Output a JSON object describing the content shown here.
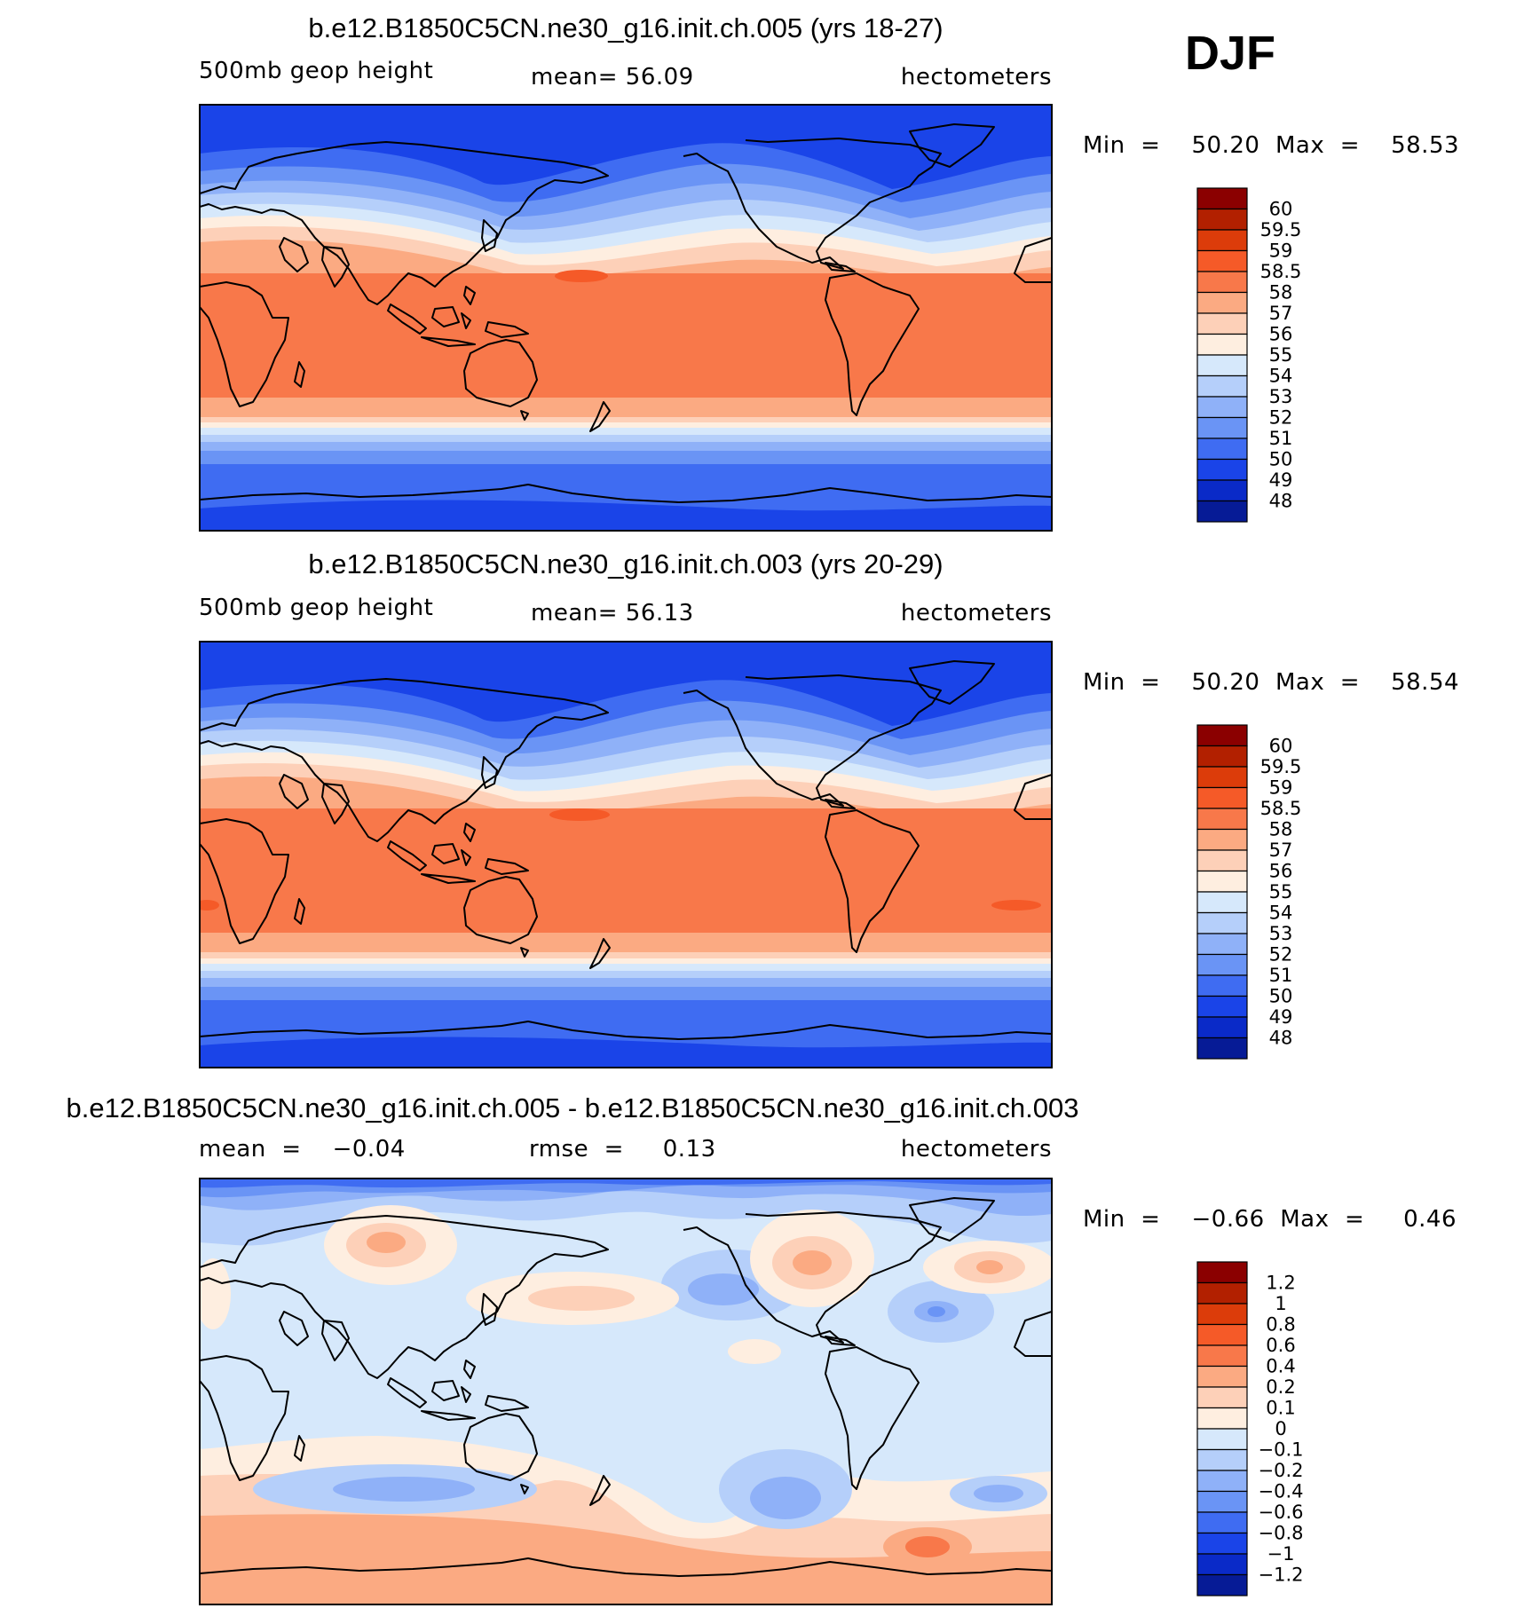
{
  "season_label": "DJF",
  "units_label": "hectometers",
  "panels": [
    {
      "title": "b.e12.B1850C5CN.ne30_g16.init.ch.005 (yrs 18-27)",
      "left_label": "500mb  geop  height",
      "center_label": "mean=   56.09",
      "right_label": "hectometers",
      "minmax_label": "Min  =    50.20  Max  =    58.53",
      "colorbar_labels": [
        "60",
        "59.5",
        "59",
        "58.5",
        "58",
        "57",
        "56",
        "55",
        "54",
        "53",
        "52",
        "51",
        "50",
        "49",
        "48"
      ]
    },
    {
      "title": "b.e12.B1850C5CN.ne30_g16.init.ch.003 (yrs 20-29)",
      "left_label": "500mb  geop  height",
      "center_label": "mean=   56.13",
      "right_label": "hectometers",
      "minmax_label": "Min  =    50.20  Max  =    58.54",
      "colorbar_labels": [
        "60",
        "59.5",
        "59",
        "58.5",
        "58",
        "57",
        "56",
        "55",
        "54",
        "53",
        "52",
        "51",
        "50",
        "49",
        "48"
      ]
    },
    {
      "title": "b.e12.B1850C5CN.ne30_g16.init.ch.005 - b.e12.B1850C5CN.ne30_g16.init.ch.003",
      "left_label": "mean  =    −0.04",
      "center_label": "rmse  =     0.13",
      "right_label": "hectometers",
      "minmax_label": "Min  =    −0.66  Max  =     0.46",
      "colorbar_labels": [
        "1.2",
        "1",
        "0.8",
        "0.6",
        "0.4",
        "0.2",
        "0.1",
        "0",
        "−0.1",
        "−0.2",
        "−0.4",
        "−0.6",
        "−0.8",
        "−1",
        "−1.2"
      ]
    }
  ],
  "colors": {
    "colorbar_top_to_bottom": [
      "#8b0000",
      "#b22000",
      "#dc3c0a",
      "#f55a28",
      "#f8784a",
      "#fbaa82",
      "#fdd0b8",
      "#feeee0",
      "#d6e8fb",
      "#b5cffa",
      "#8fb1f8",
      "#6a94f5",
      "#3f6cf2",
      "#1a44e8",
      "#0a2ac8",
      "#061b96",
      "#020a7a"
    ],
    "tropical_height": "#f8784a",
    "polar_height": "#3f6cf2",
    "difference_background": "#d6e8fb",
    "coastline": "#000000"
  },
  "chart_data": [
    {
      "type": "heatmap",
      "map": "global cylindrical equidistant, Pacific-centered",
      "title": "b.e12.B1850C5CN.ne30_g16.init.ch.005 (yrs 18-27)",
      "variable": "500mb geop height",
      "units": "hectometers",
      "mean": 56.09,
      "min": 50.2,
      "max": 58.53,
      "contour_levels": [
        48,
        49,
        50,
        51,
        52,
        53,
        54,
        55,
        56,
        57,
        58,
        58.5,
        59,
        59.5,
        60
      ]
    },
    {
      "type": "heatmap",
      "map": "global cylindrical equidistant, Pacific-centered",
      "title": "b.e12.B1850C5CN.ne30_g16.init.ch.003 (yrs 20-29)",
      "variable": "500mb geop height",
      "units": "hectometers",
      "mean": 56.13,
      "min": 50.2,
      "max": 58.54,
      "contour_levels": [
        48,
        49,
        50,
        51,
        52,
        53,
        54,
        55,
        56,
        57,
        58,
        58.5,
        59,
        59.5,
        60
      ]
    },
    {
      "type": "heatmap",
      "map": "global cylindrical equidistant, Pacific-centered",
      "title": "b.e12.B1850C5CN.ne30_g16.init.ch.005 - b.e12.B1850C5CN.ne30_g16.init.ch.003",
      "units": "hectometers",
      "mean": -0.04,
      "rmse": 0.13,
      "min": -0.66,
      "max": 0.46,
      "contour_levels": [
        -1.2,
        -1,
        -0.8,
        -0.6,
        -0.4,
        -0.2,
        -0.1,
        0,
        0.1,
        0.2,
        0.4,
        0.6,
        0.8,
        1,
        1.2
      ]
    }
  ]
}
